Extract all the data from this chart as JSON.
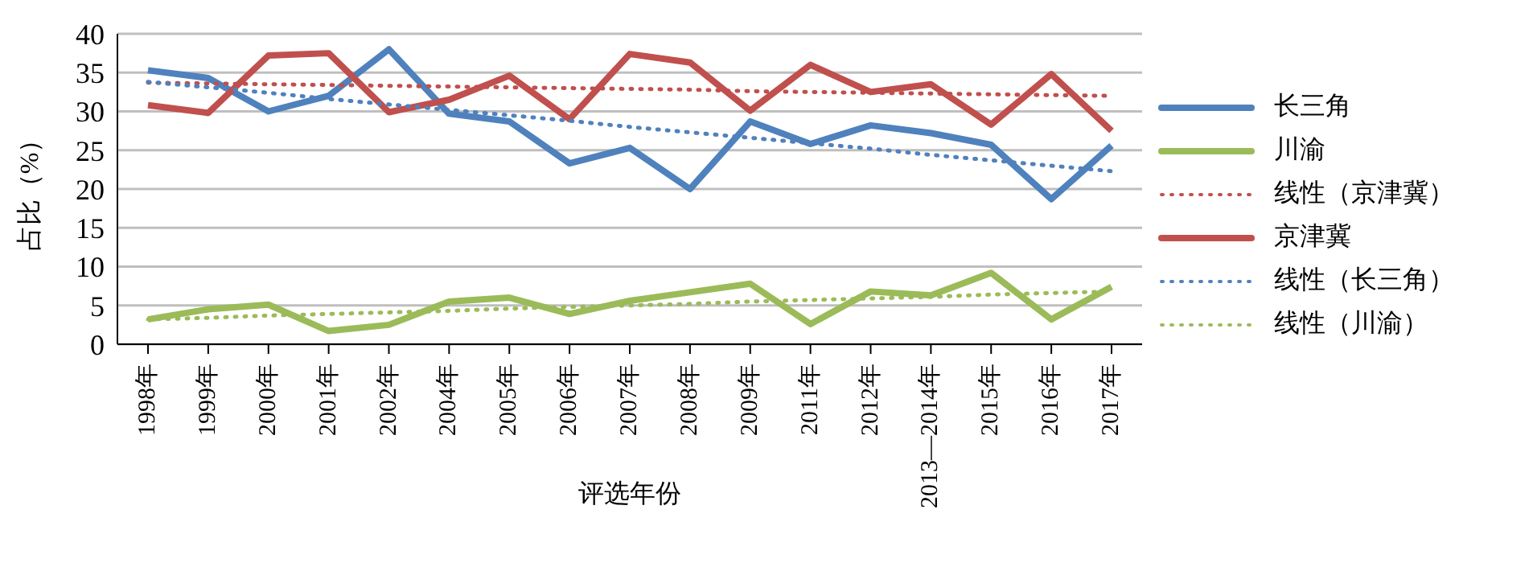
{
  "chart_data": {
    "type": "line",
    "xlabel": "评选年份",
    "ylabel": "占比（%）",
    "categories": [
      "1998年",
      "1999年",
      "2000年",
      "2001年",
      "2002年",
      "2004年",
      "2005年",
      "2006年",
      "2007年",
      "2008年",
      "2009年",
      "2011年",
      "2012年",
      "2013—2014年",
      "2015年",
      "2016年",
      "2017年"
    ],
    "ylim": [
      0,
      40
    ],
    "yticks": [
      0,
      5,
      10,
      15,
      20,
      25,
      30,
      35,
      40
    ],
    "grid": "y",
    "legend": "right",
    "marker": "none",
    "series": [
      {
        "name": "长三角",
        "color": "#4f81bd",
        "line_style": "solid",
        "values": [
          35.3,
          34.3,
          30,
          32,
          38,
          29.7,
          28.7,
          23.3,
          25.3,
          20,
          28.7,
          25.8,
          28.2,
          27.2,
          25.7,
          18.7,
          25.6
        ]
      },
      {
        "name": "川渝",
        "color": "#9bbb59",
        "line_style": "solid",
        "values": [
          3.2,
          4.5,
          5.1,
          1.7,
          2.5,
          5.5,
          6,
          3.9,
          5.6,
          6.7,
          7.8,
          2.6,
          6.8,
          6.3,
          9.2,
          3.2,
          7.4
        ]
      },
      {
        "name": "线性（京津冀）",
        "color": "#c0504d",
        "line_style": "dotted",
        "values": [
          33.7,
          33.6,
          33.5,
          33.4,
          33.3,
          33.2,
          33.1,
          33.0,
          32.9,
          32.8,
          32.6,
          32.5,
          32.4,
          32.3,
          32.2,
          32.1,
          32.0
        ]
      },
      {
        "name": "京津冀",
        "color": "#c0504d",
        "line_style": "solid",
        "values": [
          30.8,
          29.8,
          37.2,
          37.5,
          29.9,
          31.5,
          34.6,
          29,
          37.4,
          36.3,
          30.1,
          36,
          32.5,
          33.5,
          28.3,
          34.8,
          27.5
        ]
      },
      {
        "name": "线性（长三角）",
        "color": "#4f81bd",
        "line_style": "dotted",
        "values": [
          33.8,
          33.1,
          32.4,
          31.6,
          30.9,
          30.2,
          29.5,
          28.8,
          28.0,
          27.3,
          26.6,
          25.9,
          25.2,
          24.4,
          23.7,
          23.0,
          22.3
        ]
      },
      {
        "name": "线性（川渝）",
        "color": "#9bbb59",
        "line_style": "dotted",
        "values": [
          3.2,
          3.4,
          3.7,
          3.9,
          4.1,
          4.3,
          4.6,
          4.8,
          5.0,
          5.2,
          5.5,
          5.7,
          5.9,
          6.1,
          6.4,
          6.6,
          6.8
        ]
      }
    ]
  }
}
